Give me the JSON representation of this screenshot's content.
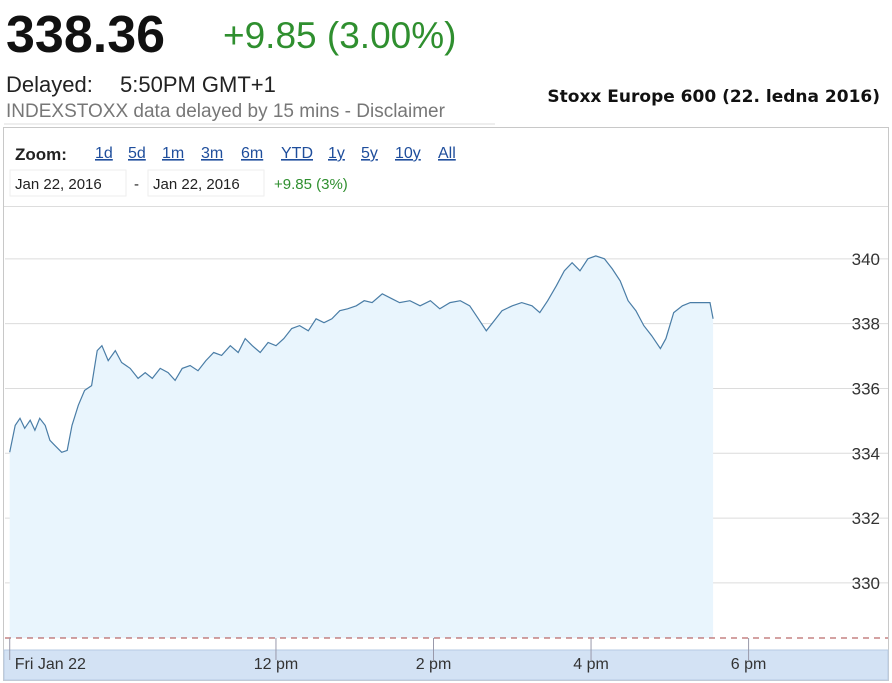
{
  "header": {
    "price": "338.36",
    "change": "+9.85 (3.00%)",
    "delayed_label": "Delayed:",
    "time": "5:50PM GMT+1",
    "note": "INDEXSTOXX data delayed by 15 mins - Disclaimer"
  },
  "toolbar": {
    "zoom_label": "Zoom:",
    "zoom_options": [
      "1d",
      "5d",
      "1m",
      "3m",
      "6m",
      "YTD",
      "1y",
      "5y",
      "10y",
      "All"
    ],
    "from_date": "Jan 22, 2016",
    "separator": "-",
    "to_date": "Jan 22, 2016",
    "period_change": "+9.85 (3%)"
  },
  "chart_data": {
    "type": "area",
    "title": "Stoxx Europe 600 (22. ledna 2016)",
    "x": [
      8.62,
      8.69,
      8.75,
      8.81,
      8.88,
      8.94,
      9.0,
      9.07,
      9.13,
      9.19,
      9.28,
      9.35,
      9.41,
      9.49,
      9.57,
      9.66,
      9.73,
      9.79,
      9.87,
      9.96,
      10.04,
      10.15,
      10.25,
      10.34,
      10.43,
      10.53,
      10.63,
      10.72,
      10.81,
      10.91,
      11.01,
      11.11,
      11.21,
      11.31,
      11.42,
      11.52,
      11.61,
      11.7,
      11.8,
      11.9,
      12.0,
      12.1,
      12.2,
      12.3,
      12.41,
      12.51,
      12.61,
      12.71,
      12.81,
      12.91,
      13.02,
      13.12,
      13.22,
      13.35,
      13.47,
      13.57,
      13.7,
      13.83,
      13.96,
      14.08,
      14.21,
      14.34,
      14.46,
      14.57,
      14.67,
      14.77,
      14.87,
      15.0,
      15.12,
      15.25,
      15.35,
      15.45,
      15.56,
      15.66,
      15.76,
      15.86,
      15.96,
      16.06,
      16.17,
      16.27,
      16.37,
      16.47,
      16.57,
      16.67,
      16.77,
      16.88,
      16.95,
      17.05,
      17.16,
      17.26,
      17.38,
      17.51,
      17.55
    ],
    "values": [
      334.03,
      334.86,
      335.08,
      334.77,
      335.02,
      334.71,
      335.08,
      334.86,
      334.4,
      334.25,
      334.03,
      334.09,
      334.86,
      335.48,
      335.94,
      336.09,
      337.17,
      337.32,
      336.86,
      337.17,
      336.8,
      336.62,
      336.31,
      336.49,
      336.31,
      336.62,
      336.49,
      336.25,
      336.62,
      336.71,
      336.55,
      336.86,
      337.11,
      337.02,
      337.32,
      337.11,
      337.54,
      337.32,
      337.11,
      337.42,
      337.32,
      337.54,
      337.85,
      337.94,
      337.78,
      338.15,
      338.03,
      338.15,
      338.4,
      338.46,
      338.55,
      338.71,
      338.65,
      338.92,
      338.77,
      338.65,
      338.71,
      338.55,
      338.71,
      338.46,
      338.65,
      338.71,
      338.55,
      338.15,
      337.78,
      338.09,
      338.4,
      338.55,
      338.65,
      338.55,
      338.34,
      338.71,
      339.17,
      339.63,
      339.88,
      339.63,
      340,
      340.09,
      340,
      339.69,
      339.32,
      338.71,
      338.4,
      337.94,
      337.63,
      337.23,
      337.54,
      338.34,
      338.55,
      338.65,
      338.65,
      338.65,
      338.15
    ],
    "color": "#4a7da6",
    "fill_color": "#e9f5fd",
    "xlim": [
      8.56,
      19.77
    ],
    "ylim": [
      328.3,
      341.6
    ],
    "xticks": [
      {
        "value": 8.62,
        "label": "Fri Jan 22"
      },
      {
        "value": 12,
        "label": "12 pm"
      },
      {
        "value": 14,
        "label": "2 pm"
      },
      {
        "value": 16,
        "label": "4 pm"
      },
      {
        "value": 18,
        "label": "6 pm"
      }
    ],
    "yticks": [
      330,
      332,
      334,
      336,
      338,
      340
    ],
    "grid": true
  }
}
